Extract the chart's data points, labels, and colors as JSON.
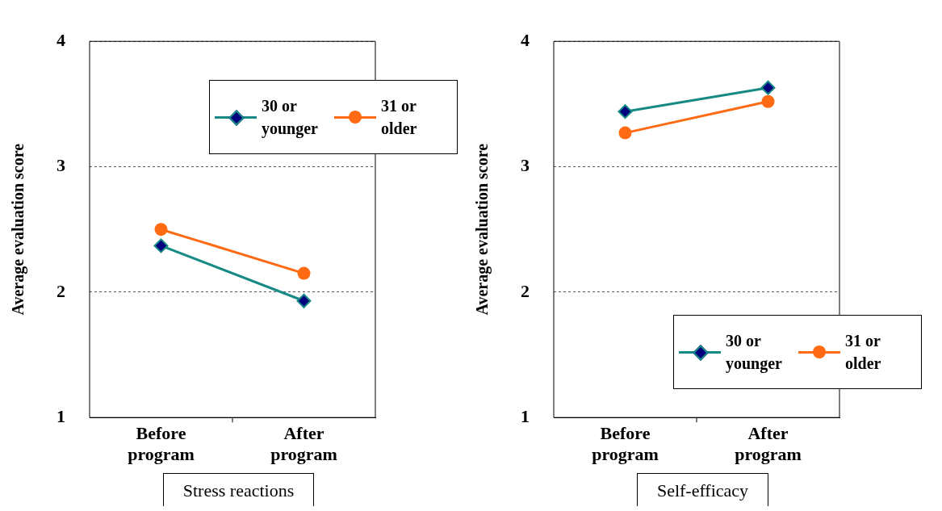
{
  "chart_data": [
    {
      "type": "line",
      "title": "Stress reactions",
      "ylabel": "Average evaluation score",
      "categories": [
        "Before program",
        "After program"
      ],
      "ylim": [
        1,
        4
      ],
      "yticks": [
        1,
        2,
        3,
        4
      ],
      "grid": "y",
      "legend": "top right",
      "series": [
        {
          "name": "30 or younger",
          "color": "#178a86",
          "marker": "diamond",
          "values": [
            2.37,
            1.93
          ]
        },
        {
          "name": "31 or older",
          "color": "#ff6a13",
          "marker": "circle",
          "values": [
            2.5,
            2.15
          ]
        }
      ]
    },
    {
      "type": "line",
      "title": "Self-efficacy",
      "ylabel": "Average evaluation score",
      "categories": [
        "Before program",
        "After program"
      ],
      "ylim": [
        1,
        4
      ],
      "yticks": [
        1,
        2,
        3,
        4
      ],
      "grid": "y",
      "legend": "bottom right",
      "series": [
        {
          "name": "30 or younger",
          "color": "#178a86",
          "marker": "diamond",
          "values": [
            3.44,
            3.63
          ]
        },
        {
          "name": "31 or older",
          "color": "#ff6a13",
          "marker": "circle",
          "values": [
            3.27,
            3.52
          ]
        }
      ]
    }
  ]
}
